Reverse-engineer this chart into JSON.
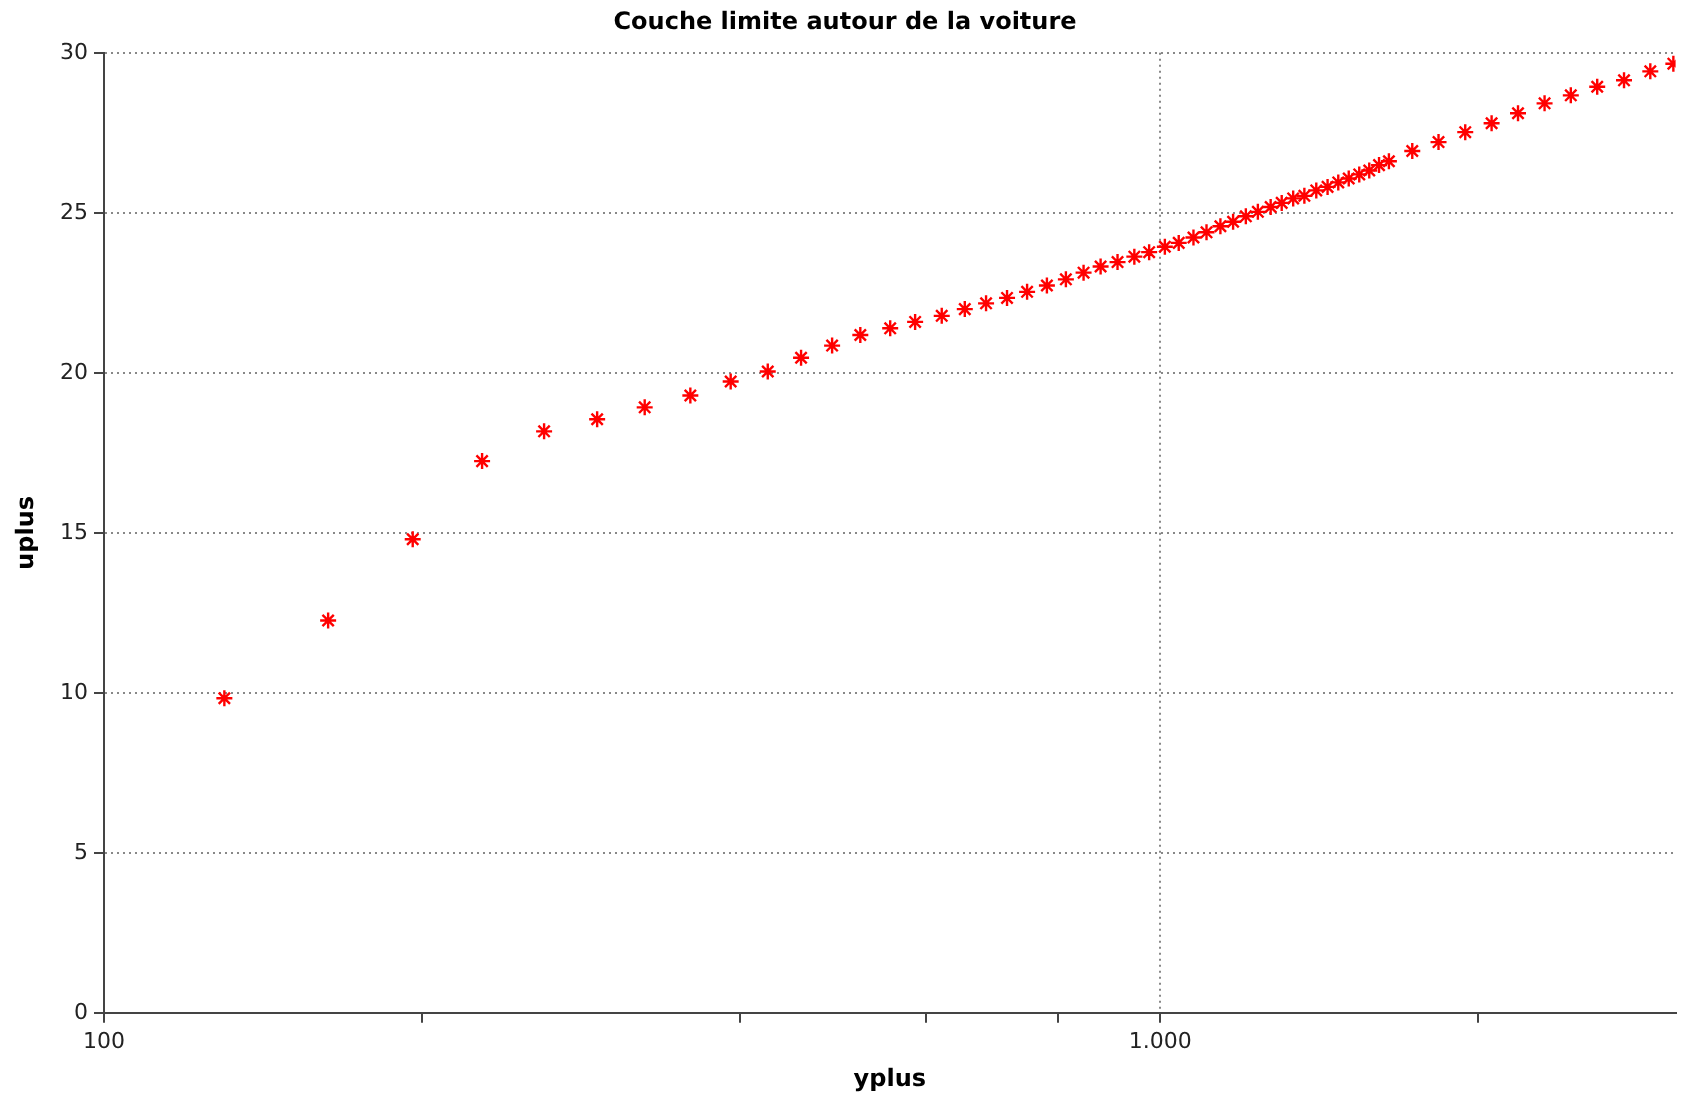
{
  "chart_data": {
    "type": "scatter",
    "title": "Couche limite autour de la voiture",
    "xlabel": "yplus",
    "ylabel": "uplus",
    "log": "x",
    "grid": true,
    "legend": false,
    "marker": "cross",
    "xlim": [
      100,
      3075
    ],
    "xticks": [
      100,
      {
        "value": 200,
        "label": null
      },
      {
        "value": 400,
        "label": null
      },
      {
        "value": 600,
        "label": null
      },
      {
        "value": 800,
        "label": null
      },
      {
        "value": 1000,
        "label": "1.000"
      },
      {
        "value": 2000,
        "label": null
      }
    ],
    "ylim": [
      0,
      30
    ],
    "yticks": [
      0,
      5,
      10,
      15,
      20,
      25,
      30
    ],
    "series": [
      {
        "color": "#ff0000",
        "x": [
          130,
          163,
          196,
          228,
          261,
          293,
          325,
          359,
          392,
          425,
          457,
          489,
          520,
          555,
          586,
          621,
          653,
          684,
          716,
          748,
          781,
          814,
          846,
          878,
          911,
          945,
          976,
          1010,
          1041,
          1075,
          1106,
          1140,
          1172,
          1205,
          1237,
          1272,
          1303,
          1336,
          1369,
          1405,
          1440,
          1474,
          1508,
          1543,
          1577,
          1611,
          1646,
          1732,
          1834,
          1944,
          2059,
          2181,
          2311,
          2447,
          2592,
          2748,
          2910,
          3060
        ],
        "values": [
          9.83,
          12.26,
          14.8,
          17.24,
          18.17,
          18.55,
          18.92,
          19.29,
          19.73,
          20.04,
          20.47,
          20.85,
          21.18,
          21.39,
          21.59,
          21.78,
          21.99,
          22.17,
          22.34,
          22.53,
          22.73,
          22.92,
          23.13,
          23.32,
          23.46,
          23.63,
          23.77,
          23.94,
          24.06,
          24.23,
          24.39,
          24.58,
          24.72,
          24.89,
          25.03,
          25.18,
          25.31,
          25.45,
          25.53,
          25.7,
          25.81,
          25.95,
          26.07,
          26.2,
          26.32,
          26.49,
          26.61,
          26.93,
          27.21,
          27.52,
          27.8,
          28.11,
          28.42,
          28.67,
          28.94,
          29.14,
          29.42,
          29.66
        ]
      }
    ]
  }
}
